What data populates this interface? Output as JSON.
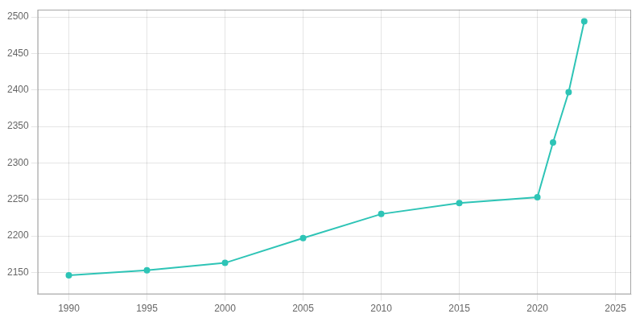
{
  "chart_data": {
    "type": "line",
    "x": [
      1990,
      1995,
      2000,
      2005,
      2010,
      2015,
      2020,
      2021,
      2022,
      2023
    ],
    "values": [
      2146,
      2153,
      2163,
      2197,
      2230,
      2245,
      2253,
      2328,
      2397,
      2494
    ],
    "color": "#2ec4b6",
    "marker": "circle",
    "xlim": [
      1988,
      2026
    ],
    "ylim": [
      2120,
      2510
    ],
    "xticks": [
      1990,
      1995,
      2000,
      2005,
      2010,
      2015,
      2020,
      2025
    ],
    "yticks": [
      2150,
      2200,
      2250,
      2300,
      2350,
      2400,
      2450,
      2500
    ],
    "grid": true
  }
}
